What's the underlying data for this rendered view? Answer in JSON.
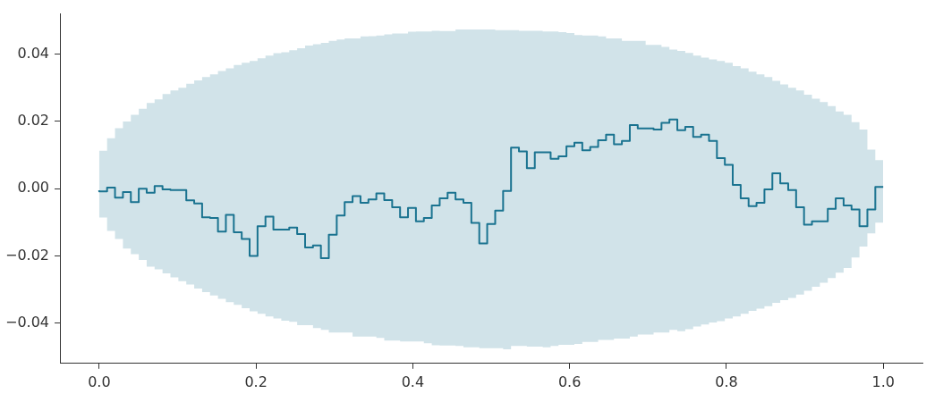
{
  "chart_data": {
    "type": "step",
    "xlim": [
      -0.05,
      1.05
    ],
    "ylim": [
      -0.052,
      0.052
    ],
    "xticks": [
      {
        "value": 0,
        "label": "0.0"
      },
      {
        "value": 0.2,
        "label": "0.2"
      },
      {
        "value": 0.4,
        "label": "0.4"
      },
      {
        "value": 0.6,
        "label": "0.6"
      },
      {
        "value": 0.8,
        "label": "0.8"
      },
      {
        "value": 1,
        "label": "1.0"
      }
    ],
    "yticks": [
      {
        "value": -0.04,
        "label": "−0.04"
      },
      {
        "value": -0.02,
        "label": "−0.02"
      },
      {
        "value": 0,
        "label": "0.00"
      },
      {
        "value": 0.02,
        "label": "0.02"
      },
      {
        "value": 0.04,
        "label": "0.04"
      }
    ],
    "grid": false,
    "legend": false,
    "x": [
      0,
      0.0101,
      0.0202,
      0.0303,
      0.0404,
      0.0505,
      0.0606,
      0.0707,
      0.0808,
      0.0909,
      0.101,
      0.1111,
      0.1212,
      0.1313,
      0.1414,
      0.1515,
      0.1616,
      0.1717,
      0.1818,
      0.1919,
      0.202,
      0.2121,
      0.2222,
      0.2323,
      0.2424,
      0.2525,
      0.2626,
      0.2727,
      0.2828,
      0.2929,
      0.303,
      0.3131,
      0.3232,
      0.3333,
      0.3434,
      0.3535,
      0.3636,
      0.3737,
      0.3838,
      0.3939,
      0.404,
      0.4141,
      0.4242,
      0.4343,
      0.4444,
      0.4545,
      0.4646,
      0.4747,
      0.4848,
      0.4949,
      0.5051,
      0.5152,
      0.5253,
      0.5354,
      0.5455,
      0.5556,
      0.5657,
      0.5758,
      0.5859,
      0.596,
      0.6061,
      0.6162,
      0.6263,
      0.6364,
      0.6465,
      0.6566,
      0.6667,
      0.6768,
      0.6869,
      0.697,
      0.7071,
      0.7172,
      0.7273,
      0.7374,
      0.7475,
      0.7576,
      0.7677,
      0.7778,
      0.7879,
      0.798,
      0.8081,
      0.8182,
      0.8283,
      0.8384,
      0.8485,
      0.8586,
      0.8687,
      0.8788,
      0.8889,
      0.899,
      0.9091,
      0.9192,
      0.9293,
      0.9394,
      0.9495,
      0.9596,
      0.9697,
      0.9798,
      0.9899,
      1
    ],
    "series": [
      {
        "color": "#1a7390",
        "values": [
          -0.0005,
          -0.0008,
          0.0003,
          -0.0027,
          -0.001,
          -0.004,
          0,
          -0.0012,
          0.0008,
          -0.0002,
          -0.0004,
          -0.0004,
          -0.0035,
          -0.0044,
          -0.0085,
          -0.0087,
          -0.0128,
          -0.0078,
          -0.013,
          -0.015,
          -0.02,
          -0.0112,
          -0.0083,
          -0.0122,
          -0.0122,
          -0.0116,
          -0.0135,
          -0.0175,
          -0.0169,
          -0.0207,
          -0.0137,
          -0.008,
          -0.004,
          -0.0022,
          -0.0042,
          -0.0032,
          -0.0014,
          -0.0034,
          -0.0055,
          -0.0085,
          -0.0057,
          -0.0097,
          -0.0087,
          -0.005,
          -0.0029,
          -0.0012,
          -0.0032,
          -0.0042,
          -0.0102,
          -0.0163,
          -0.0105,
          -0.0065,
          -0.0007,
          0.0122,
          0.0111,
          0.0061,
          0.0108,
          0.0108,
          0.0089,
          0.0096,
          0.0126,
          0.0137,
          0.0114,
          0.0124,
          0.0144,
          0.0161,
          0.0132,
          0.0142,
          0.0189,
          0.0179,
          0.0179,
          0.0176,
          0.0196,
          0.0206,
          0.0174,
          0.0184,
          0.0154,
          0.0161,
          0.0142,
          0.0091,
          0.0071,
          0.0011,
          -0.0029,
          -0.0052,
          -0.0042,
          -0.0002,
          0.0046,
          0.0016,
          -0.0004,
          -0.0055,
          -0.0107,
          -0.0097,
          -0.0097,
          -0.006,
          -0.0029,
          -0.005,
          -0.0062,
          -0.0112,
          -0.0062,
          0.0005
        ],
        "lower": [
          -0.0013,
          -0.0086,
          -0.0126,
          -0.015,
          -0.0178,
          -0.0195,
          -0.0212,
          -0.0232,
          -0.024,
          -0.0252,
          -0.0264,
          -0.0275,
          -0.0285,
          -0.0297,
          -0.0308,
          -0.0318,
          -0.0328,
          -0.0338,
          -0.0346,
          -0.0356,
          -0.0365,
          -0.0372,
          -0.038,
          -0.0386,
          -0.0393,
          -0.0396,
          -0.0406,
          -0.0406,
          -0.0415,
          -0.042,
          -0.0428,
          -0.0428,
          -0.0428,
          -0.044,
          -0.044,
          -0.044,
          -0.0444,
          -0.0452,
          -0.0452,
          -0.0455,
          -0.0455,
          -0.0455,
          -0.046,
          -0.0466,
          -0.0467,
          -0.0467,
          -0.0468,
          -0.0472,
          -0.0472,
          -0.0475,
          -0.0475,
          -0.0475,
          -0.0478,
          -0.0468,
          -0.0468,
          -0.047,
          -0.047,
          -0.0472,
          -0.0468,
          -0.0465,
          -0.0465,
          -0.0462,
          -0.0456,
          -0.0456,
          -0.045,
          -0.045,
          -0.0446,
          -0.0446,
          -0.044,
          -0.0434,
          -0.0434,
          -0.0428,
          -0.0428,
          -0.042,
          -0.0424,
          -0.0418,
          -0.041,
          -0.0404,
          -0.0398,
          -0.0394,
          -0.0386,
          -0.038,
          -0.0372,
          -0.0364,
          -0.0357,
          -0.035,
          -0.034,
          -0.0332,
          -0.0325,
          -0.0315,
          -0.0304,
          -0.0292,
          -0.028,
          -0.0266,
          -0.025,
          -0.0236,
          -0.0205,
          -0.0172,
          -0.0133,
          -0.0101
        ],
        "upper": [
          0.0053,
          0.0113,
          0.015,
          0.018,
          0.02,
          0.022,
          0.0238,
          0.0255,
          0.0266,
          0.0282,
          0.0292,
          0.03,
          0.0312,
          0.0322,
          0.0332,
          0.034,
          0.035,
          0.0358,
          0.0368,
          0.0375,
          0.038,
          0.0388,
          0.0396,
          0.0403,
          0.0406,
          0.0412,
          0.0418,
          0.0426,
          0.043,
          0.0434,
          0.044,
          0.0444,
          0.0447,
          0.0447,
          0.0453,
          0.0454,
          0.0456,
          0.0459,
          0.0462,
          0.0462,
          0.0467,
          0.0468,
          0.0468,
          0.047,
          0.0469,
          0.0469,
          0.0474,
          0.0474,
          0.0474,
          0.0474,
          0.0474,
          0.0472,
          0.0472,
          0.0472,
          0.047,
          0.047,
          0.047,
          0.0468,
          0.0468,
          0.0466,
          0.0463,
          0.0457,
          0.0456,
          0.0456,
          0.0453,
          0.0447,
          0.0447,
          0.044,
          0.044,
          0.044,
          0.0428,
          0.0428,
          0.0422,
          0.0414,
          0.041,
          0.0404,
          0.0396,
          0.039,
          0.0385,
          0.038,
          0.0375,
          0.0365,
          0.0358,
          0.0348,
          0.034,
          0.0332,
          0.0321,
          0.031,
          0.03,
          0.0292,
          0.028,
          0.0268,
          0.0258,
          0.0246,
          0.023,
          0.022,
          0.0198,
          0.0176,
          0.0116,
          0.0085
        ]
      }
    ]
  }
}
